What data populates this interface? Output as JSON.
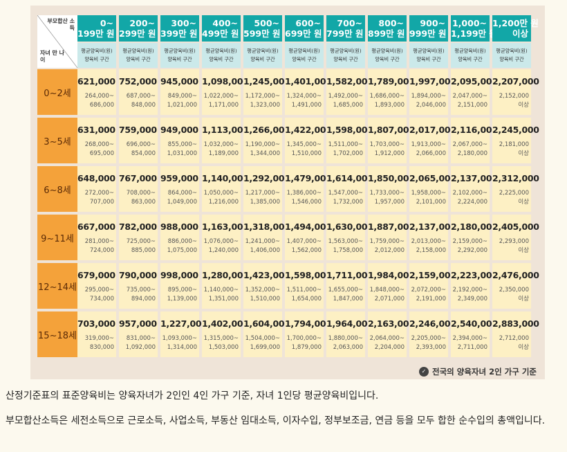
{
  "table": {
    "corner_top": "부모합산 소득",
    "corner_bottom": "자녀 만 나이",
    "columns": [
      {
        "line1": "0~",
        "line2": "199만 원",
        "sub1": "평균양육비(원)",
        "sub2": "양육비 구간"
      },
      {
        "line1": "200~",
        "line2": "299만 원",
        "sub1": "평균양육비(원)",
        "sub2": "양육비 구간"
      },
      {
        "line1": "300~",
        "line2": "399만 원",
        "sub1": "평균양육비(원)",
        "sub2": "양육비 구간"
      },
      {
        "line1": "400~",
        "line2": "499만 원",
        "sub1": "평균양육비(원)",
        "sub2": "양육비 구간"
      },
      {
        "line1": "500~",
        "line2": "599만 원",
        "sub1": "평균양육비(원)",
        "sub2": "양육비 구간"
      },
      {
        "line1": "600~",
        "line2": "699만 원",
        "sub1": "평균양육비(원)",
        "sub2": "양육비 구간"
      },
      {
        "line1": "700~",
        "line2": "799만 원",
        "sub1": "평균양육비(원)",
        "sub2": "양육비 구간"
      },
      {
        "line1": "800~",
        "line2": "899만 원",
        "sub1": "평균양육비(원)",
        "sub2": "양육비 구간"
      },
      {
        "line1": "900~",
        "line2": "999만 원",
        "sub1": "평균양육비(원)",
        "sub2": "양육비 구간"
      },
      {
        "line1": "1,000~",
        "line2": "1,199만 원",
        "sub1": "평균양육비(원)",
        "sub2": "양육비 구간"
      },
      {
        "line1": "1,200만 원",
        "line2": "이상",
        "sub1": "평균양육비(원)",
        "sub2": "양육비 구간"
      }
    ],
    "rows": [
      {
        "age": "0~2세",
        "cells": [
          {
            "avg": "621,000",
            "r1": "264,000~",
            "r2": "686,000"
          },
          {
            "avg": "752,000",
            "r1": "687,000~",
            "r2": "848,000"
          },
          {
            "avg": "945,000",
            "r1": "849,000~",
            "r2": "1,021,000"
          },
          {
            "avg": "1,098,000",
            "r1": "1,022,000~",
            "r2": "1,171,000"
          },
          {
            "avg": "1,245,000",
            "r1": "1,172,000~",
            "r2": "1,323,000"
          },
          {
            "avg": "1,401,000",
            "r1": "1,324,000~",
            "r2": "1,491,000"
          },
          {
            "avg": "1,582,000",
            "r1": "1,492,000~",
            "r2": "1,685,000"
          },
          {
            "avg": "1,789,000",
            "r1": "1,686,000~",
            "r2": "1,893,000"
          },
          {
            "avg": "1,997,000",
            "r1": "1,894,000~",
            "r2": "2,046,000"
          },
          {
            "avg": "2,095,000",
            "r1": "2,047,000~",
            "r2": "2,151,000"
          },
          {
            "avg": "2,207,000",
            "r1": "2,152,000",
            "r2": "이상"
          }
        ]
      },
      {
        "age": "3~5세",
        "cells": [
          {
            "avg": "631,000",
            "r1": "268,000~",
            "r2": "695,000"
          },
          {
            "avg": "759,000",
            "r1": "696,000~",
            "r2": "854,000"
          },
          {
            "avg": "949,000",
            "r1": "855,000~",
            "r2": "1,031,000"
          },
          {
            "avg": "1,113,000",
            "r1": "1,032,000~",
            "r2": "1,189,000"
          },
          {
            "avg": "1,266,000",
            "r1": "1,190,000~",
            "r2": "1,344,000"
          },
          {
            "avg": "1,422,000",
            "r1": "1,345,000~",
            "r2": "1,510,000"
          },
          {
            "avg": "1,598,000",
            "r1": "1,511,000~",
            "r2": "1,702,000"
          },
          {
            "avg": "1,807,000",
            "r1": "1,703,000~",
            "r2": "1,912,000"
          },
          {
            "avg": "2,017,000",
            "r1": "1,913,000~",
            "r2": "2,066,000"
          },
          {
            "avg": "2,116,000",
            "r1": "2,067,000~",
            "r2": "2,180,000"
          },
          {
            "avg": "2,245,000",
            "r1": "2,181,000",
            "r2": "이상"
          }
        ]
      },
      {
        "age": "6~8세",
        "cells": [
          {
            "avg": "648,000",
            "r1": "272,000~",
            "r2": "707,000"
          },
          {
            "avg": "767,000",
            "r1": "708,000~",
            "r2": "863,000"
          },
          {
            "avg": "959,000",
            "r1": "864,000~",
            "r2": "1,049,000"
          },
          {
            "avg": "1,140,000",
            "r1": "1,050,000~",
            "r2": "1,216,000"
          },
          {
            "avg": "1,292,000",
            "r1": "1,217,000~",
            "r2": "1,385,000"
          },
          {
            "avg": "1,479,000",
            "r1": "1,386,000~",
            "r2": "1,546,000"
          },
          {
            "avg": "1,614,000",
            "r1": "1,547,000~",
            "r2": "1,732,000"
          },
          {
            "avg": "1,850,000",
            "r1": "1,733,000~",
            "r2": "1,957,000"
          },
          {
            "avg": "2,065,000",
            "r1": "1,958,000~",
            "r2": "2,101,000"
          },
          {
            "avg": "2,137,000",
            "r1": "2,102,000~",
            "r2": "2,224,000"
          },
          {
            "avg": "2,312,000",
            "r1": "2,225,000",
            "r2": "이상"
          }
        ]
      },
      {
        "age": "9~11세",
        "cells": [
          {
            "avg": "667,000",
            "r1": "281,000~",
            "r2": "724,000"
          },
          {
            "avg": "782,000",
            "r1": "725,000~",
            "r2": "885,000"
          },
          {
            "avg": "988,000",
            "r1": "886,000~",
            "r2": "1,075,000"
          },
          {
            "avg": "1,163,000",
            "r1": "1,076,000~",
            "r2": "1,240,000"
          },
          {
            "avg": "1,318,000",
            "r1": "1,241,000~",
            "r2": "1,406,000"
          },
          {
            "avg": "1,494,000",
            "r1": "1,407,000~",
            "r2": "1,562,000"
          },
          {
            "avg": "1,630,000",
            "r1": "1,563,000~",
            "r2": "1,758,000"
          },
          {
            "avg": "1,887,000",
            "r1": "1,759,000~",
            "r2": "2,012,000"
          },
          {
            "avg": "2,137,000",
            "r1": "2,013,000~",
            "r2": "2,158,000"
          },
          {
            "avg": "2,180,000",
            "r1": "2,159,000~",
            "r2": "2,292,000"
          },
          {
            "avg": "2,405,000",
            "r1": "2,293,000",
            "r2": "이상"
          }
        ]
      },
      {
        "age": "12~14세",
        "cells": [
          {
            "avg": "679,000",
            "r1": "295,000~",
            "r2": "734,000"
          },
          {
            "avg": "790,000",
            "r1": "735,000~",
            "r2": "894,000"
          },
          {
            "avg": "998,000",
            "r1": "895,000~",
            "r2": "1,139,000"
          },
          {
            "avg": "1,280,000",
            "r1": "1,140,000~",
            "r2": "1,351,000"
          },
          {
            "avg": "1,423,000",
            "r1": "1,352,000~",
            "r2": "1,510,000"
          },
          {
            "avg": "1,598,000",
            "r1": "1,511,000~",
            "r2": "1,654,000"
          },
          {
            "avg": "1,711,000",
            "r1": "1,655,000~",
            "r2": "1,847,000"
          },
          {
            "avg": "1,984,000",
            "r1": "1,848,000~",
            "r2": "2,071,000"
          },
          {
            "avg": "2,159,000",
            "r1": "2,072,000~",
            "r2": "2,191,000"
          },
          {
            "avg": "2,223,000",
            "r1": "2,192,000~",
            "r2": "2,349,000"
          },
          {
            "avg": "2,476,000",
            "r1": "2,350,000",
            "r2": "이상"
          }
        ]
      },
      {
        "age": "15~18세",
        "cells": [
          {
            "avg": "703,000",
            "r1": "319,000~",
            "r2": "830,000"
          },
          {
            "avg": "957,000",
            "r1": "831,000~",
            "r2": "1,092,000"
          },
          {
            "avg": "1,227,000",
            "r1": "1,093,000~",
            "r2": "1,314,000"
          },
          {
            "avg": "1,402,000",
            "r1": "1,315,000~",
            "r2": "1,503,000"
          },
          {
            "avg": "1,604,000",
            "r1": "1,504,000~",
            "r2": "1,699,000"
          },
          {
            "avg": "1,794,000",
            "r1": "1,700,000~",
            "r2": "1,879,000"
          },
          {
            "avg": "1,964,000",
            "r1": "1,880,000~",
            "r2": "2,063,000"
          },
          {
            "avg": "2,163,000",
            "r1": "2,064,000~",
            "r2": "2,204,000"
          },
          {
            "avg": "2,246,000",
            "r1": "2,205,000~",
            "r2": "2,393,000"
          },
          {
            "avg": "2,540,000",
            "r1": "2,394,000~",
            "r2": "2,711,000"
          },
          {
            "avg": "2,883,000",
            "r1": "2,712,000",
            "r2": "이상"
          }
        ]
      }
    ],
    "footnote_icon": "info-icon",
    "footnote": "전국의 양육자녀 2인 가구 기준"
  },
  "colors": {
    "header": "#12a7a7",
    "subheader": "#cbe9ea",
    "age_cell": "#f4a23a",
    "data_cell": "#fdf0c4",
    "panel_bg": "#efe4d8"
  },
  "paragraphs": [
    "산정기준표의 표준양육비는 양육자녀가 2인인 4인 가구 기준, 자녀 1인당 평균양육비입니다.",
    "부모합산소득은 세전소득으로 근로소득, 사업소득, 부동산 임대소득, 이자수입, 정부보조금, 연금 등을 모두 합한 순수입의 총액입니다."
  ]
}
